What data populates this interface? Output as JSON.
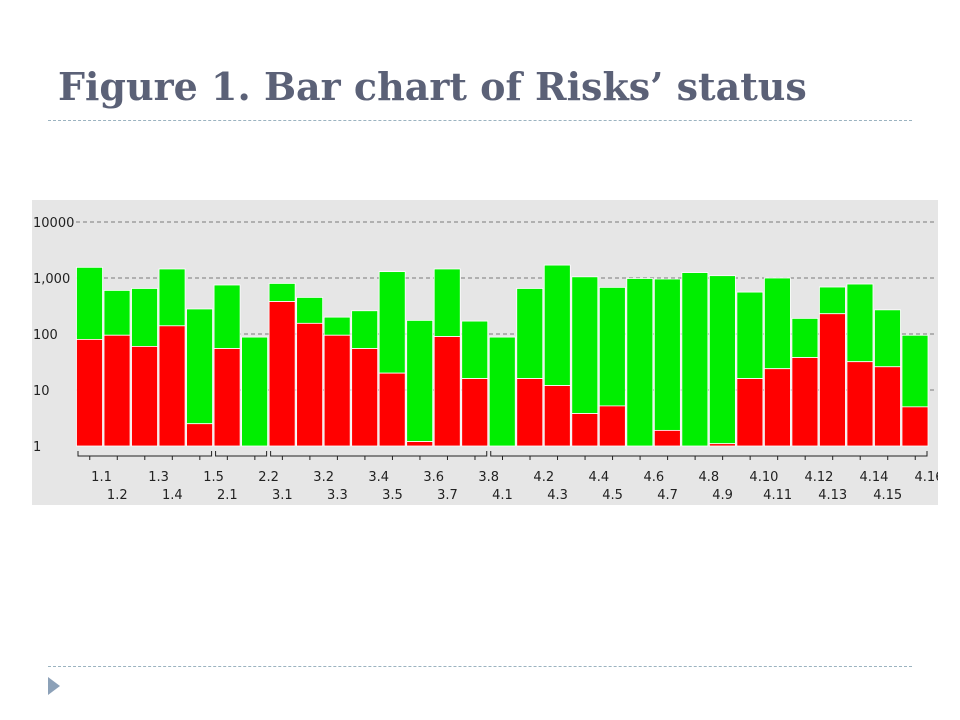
{
  "title": "Figure 1. Bar chart of Risks’ status",
  "chart_data": {
    "type": "bar",
    "stacked": true,
    "yscale": "log",
    "ylim": [
      1,
      10000
    ],
    "grid": true,
    "yticks": [
      "1",
      "10",
      "100",
      "1,000",
      "10000"
    ],
    "categories": [
      "1.1",
      "1.2",
      "1.3",
      "1.4",
      "1.5",
      "2.1",
      "2.2",
      "3.1",
      "3.2",
      "3.3",
      "3.4",
      "3.5",
      "3.6",
      "3.7",
      "3.8",
      "4.1",
      "4.2",
      "4.3",
      "4.4",
      "4.5",
      "4.6",
      "4.7",
      "4.8",
      "4.9",
      "4.10",
      "4.11",
      "4.12",
      "4.13",
      "4.14",
      "4.15",
      "4.16"
    ],
    "groups": [
      {
        "start": 0,
        "end": 4
      },
      {
        "start": 5,
        "end": 6
      },
      {
        "start": 7,
        "end": 14
      },
      {
        "start": 15,
        "end": 30
      }
    ],
    "series": [
      {
        "color": "#ff0000",
        "values": [
          80,
          95,
          60,
          140,
          2.5,
          55,
          1,
          380,
          155,
          95,
          55,
          20,
          1.2,
          90,
          16,
          1,
          16,
          12,
          3.8,
          5.2,
          1,
          1.9,
          1,
          1.1,
          16,
          24,
          38,
          230,
          32,
          26,
          5
        ]
      },
      {
        "color": "#00ee00",
        "values": [
          1550,
          600,
          650,
          1450,
          280,
          750,
          88,
          800,
          450,
          200,
          260,
          1300,
          175,
          1450,
          170,
          88,
          650,
          1700,
          1050,
          680,
          980,
          960,
          1250,
          1100,
          560,
          1000,
          190,
          690,
          780,
          270,
          95
        ]
      }
    ]
  }
}
